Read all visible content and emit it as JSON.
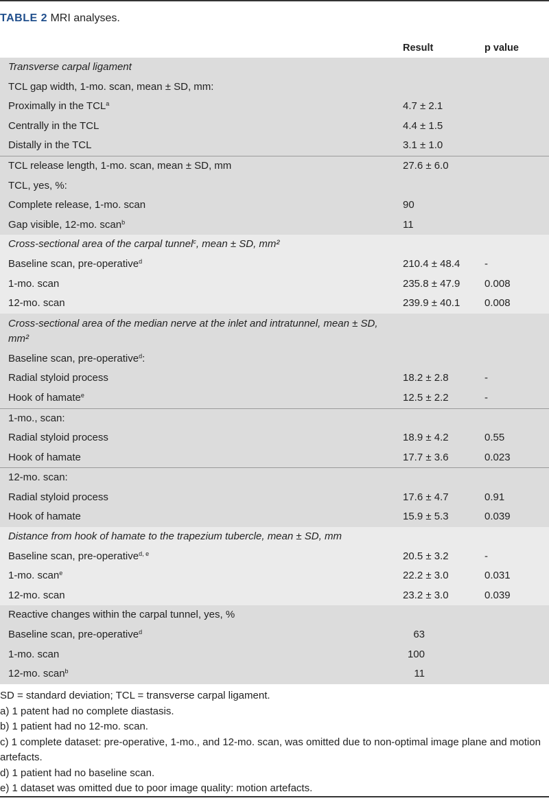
{
  "caption": {
    "label": "TABLE 2",
    "title": "MRI analyses."
  },
  "header": {
    "result": "Result",
    "p_value": "p value"
  },
  "colors": {
    "caption_label": "#1f4e8c",
    "shade_dark": "#dcdcdc",
    "shade_light": "#ebebeb"
  },
  "sections": [
    {
      "shade": "dark",
      "rows": [
        {
          "label": "Transverse carpal ligament",
          "italic": true
        },
        {
          "label": "TCL gap width, 1-mo. scan, mean ± SD, mm:"
        },
        {
          "label": "Proximally in the TCL",
          "sup": "a",
          "result": "4.7 ± 2.1"
        },
        {
          "label": "Centrally in the TCL",
          "result": "4.4 ± 1.5"
        },
        {
          "label": "Distally in the TCL",
          "result": "3.1 ± 1.0"
        },
        {
          "label": "TCL release length, 1-mo. scan, mean ± SD, mm",
          "result": "27.6 ± 6.0",
          "sep": true
        },
        {
          "label": "TCL,  yes, %:"
        },
        {
          "label": "Complete release, 1-mo. scan",
          "result": "90"
        },
        {
          "label": "Gap visible, 12-mo. scan",
          "sup": "b",
          "result": "11"
        }
      ]
    },
    {
      "shade": "light",
      "rows": [
        {
          "label": "Cross-sectional area of the carpal tunnel",
          "sup": "c",
          "label_after": ", mean ± SD, mm²",
          "italic": true
        },
        {
          "label": "Baseline scan, pre-operative",
          "sup": "d",
          "result": "210.4 ± 48.4",
          "p": "-"
        },
        {
          "label": "1-mo. scan",
          "result": "235.8 ± 47.9",
          "p": "0.008"
        },
        {
          "label": "12-mo. scan",
          "result": "239.9 ± 40.1",
          "p": "0.008"
        }
      ]
    },
    {
      "shade": "dark",
      "rows": [
        {
          "label": "Cross-sectional area of the median nerve at the inlet and intratunnel, mean ± SD, mm²",
          "italic": true,
          "tall": true
        },
        {
          "label": "Baseline scan, pre-operative",
          "sup": "d",
          "label_after": ":"
        },
        {
          "label": "Radial styloid process",
          "result": "18.2 ± 2.8",
          "p": "-"
        },
        {
          "label": "Hook of hamate",
          "sup": "e",
          "result": "12.5 ± 2.2",
          "p": "-"
        },
        {
          "label": "1-mo., scan:",
          "sep": true
        },
        {
          "label": "Radial styloid process",
          "result": "18.9 ± 4.2",
          "p": "0.55"
        },
        {
          "label": "Hook of hamate",
          "result": "17.7 ± 3.6",
          "p": "0.023"
        },
        {
          "label": "12-mo. scan:",
          "sep": true
        },
        {
          "label": "Radial styloid process",
          "result": "17.6 ± 4.7",
          "p": "0.91"
        },
        {
          "label": "Hook of hamate",
          "result": "15.9 ± 5.3",
          "p": "0.039"
        }
      ]
    },
    {
      "shade": "light",
      "rows": [
        {
          "label": "Distance from hook of hamate to the trapezium tubercle, mean ± SD, mm",
          "italic": true
        },
        {
          "label": "Baseline scan, pre-operative",
          "sup": "d, e",
          "result": "20.5 ± 3.2",
          "p": "-"
        },
        {
          "label": "1-mo. scan",
          "sup": "e",
          "result": "22.2 ± 3.0",
          "p": "0.031"
        },
        {
          "label": "12-mo. scan",
          "result": "23.2 ± 3.0",
          "p": "0.039"
        }
      ]
    },
    {
      "shade": "dark",
      "rows": [
        {
          "label": "Reactive changes within the carpal tunnel, yes, %"
        },
        {
          "label": "Baseline scan, pre-operative",
          "sup": "d",
          "result": "63",
          "numeric": true
        },
        {
          "label": "1-mo. scan",
          "result": "100",
          "numeric": true
        },
        {
          "label": "12-mo. scan",
          "sup": "b",
          "result": "11",
          "numeric": true
        }
      ]
    }
  ],
  "footnotes": [
    "SD = standard deviation; TCL = transverse carpal ligament.",
    "a) 1 patent had no complete diastasis.",
    "b) 1 patient had no 12-mo. scan.",
    "c) 1 complete dataset: pre-operative, 1-mo., and 12-mo. scan, was omitted due to non-optimal image plane and motion artefacts.",
    "d) 1 patient had no baseline scan.",
    "e) 1 dataset was omitted due to poor image quality: motion artefacts."
  ]
}
